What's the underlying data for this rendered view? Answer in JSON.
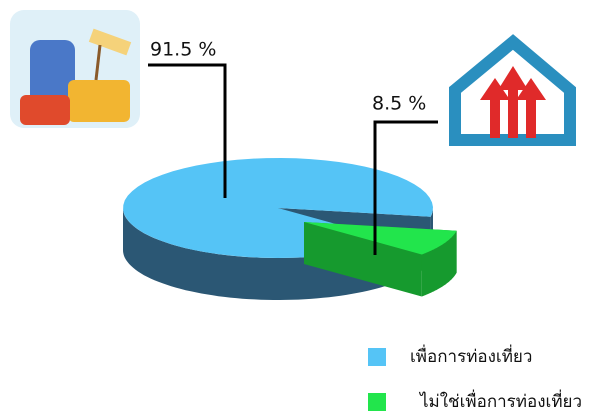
{
  "chart_data": {
    "type": "pie",
    "categories": [
      "เพื่อการท่องเที่ยว",
      "ไม่ใช่เพื่อการท่องเที่ยว"
    ],
    "values": [
      91.5,
      8.5
    ],
    "value_labels": [
      "91.5 %",
      "8.5 %"
    ],
    "colors": [
      "#55c4f6",
      "#22e54c"
    ],
    "side_colors": [
      "#2b5774",
      "#169a2e"
    ]
  }
}
